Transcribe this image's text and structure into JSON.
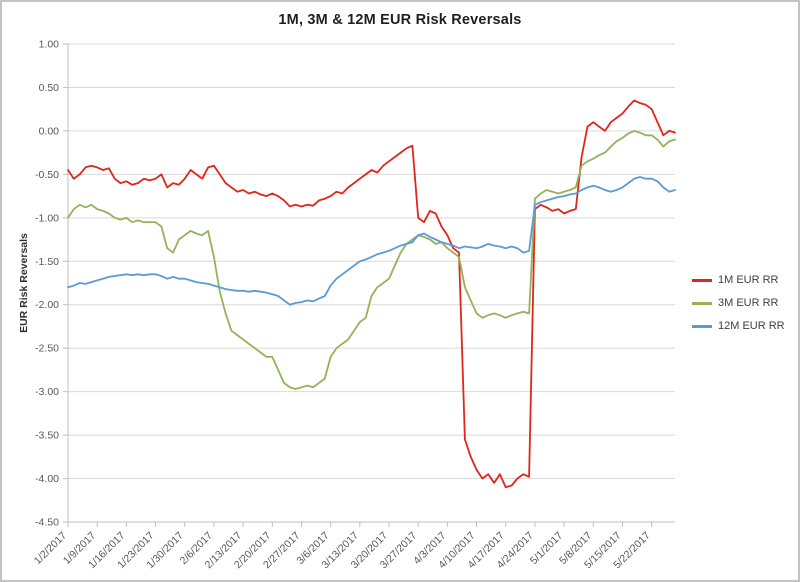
{
  "chart_data": {
    "type": "line",
    "title": "1M, 3M & 12M EUR Risk Reversals",
    "xlabel": "",
    "ylabel": "EUR Risk Reversals",
    "ylim": [
      -4.5,
      1.0
    ],
    "y_step": 0.5,
    "grid": "horizontal",
    "legend_position": "right",
    "x_label_step": 5,
    "x_labels": [
      "1/2/2017",
      "1/9/2017",
      "1/16/2017",
      "1/23/2017",
      "1/30/2017",
      "2/6/2017",
      "2/13/2017",
      "2/20/2017",
      "2/27/2017",
      "3/6/2017",
      "3/13/2017",
      "3/20/2017",
      "3/27/2017",
      "4/3/2017",
      "4/10/2017",
      "4/17/2017",
      "4/24/2017",
      "5/1/2017",
      "5/8/2017",
      "5/15/2017",
      "5/22/2017"
    ],
    "colors": {
      "gridline": "#d9d9d9",
      "axis": "#bfbfbf"
    },
    "series": [
      {
        "name": "1M EUR RR",
        "color": "#e0261b",
        "values": [
          -0.45,
          -0.55,
          -0.5,
          -0.42,
          -0.4,
          -0.42,
          -0.45,
          -0.43,
          -0.55,
          -0.6,
          -0.58,
          -0.62,
          -0.6,
          -0.55,
          -0.57,
          -0.55,
          -0.5,
          -0.65,
          -0.6,
          -0.62,
          -0.55,
          -0.45,
          -0.5,
          -0.55,
          -0.42,
          -0.4,
          -0.5,
          -0.6,
          -0.65,
          -0.7,
          -0.68,
          -0.72,
          -0.7,
          -0.73,
          -0.75,
          -0.72,
          -0.75,
          -0.8,
          -0.87,
          -0.85,
          -0.87,
          -0.85,
          -0.86,
          -0.8,
          -0.78,
          -0.75,
          -0.7,
          -0.72,
          -0.65,
          -0.6,
          -0.55,
          -0.5,
          -0.45,
          -0.48,
          -0.4,
          -0.35,
          -0.3,
          -0.25,
          -0.2,
          -0.17,
          -1.0,
          -1.05,
          -0.92,
          -0.95,
          -1.1,
          -1.2,
          -1.35,
          -1.4,
          -3.55,
          -3.75,
          -3.9,
          -4.0,
          -3.95,
          -4.05,
          -3.95,
          -4.1,
          -4.08,
          -4.0,
          -3.95,
          -3.98,
          -0.9,
          -0.85,
          -0.88,
          -0.92,
          -0.9,
          -0.95,
          -0.92,
          -0.9,
          -0.3,
          0.05,
          0.1,
          0.05,
          0.0,
          0.1,
          0.15,
          0.2,
          0.28,
          0.35,
          0.32,
          0.3,
          0.25,
          0.1,
          -0.05,
          0.0,
          -0.02
        ]
      },
      {
        "name": "3M EUR RR",
        "color": "#94b25a",
        "values": [
          -1.0,
          -0.9,
          -0.85,
          -0.88,
          -0.85,
          -0.9,
          -0.92,
          -0.95,
          -1.0,
          -1.02,
          -1.0,
          -1.05,
          -1.03,
          -1.05,
          -1.05,
          -1.05,
          -1.1,
          -1.35,
          -1.4,
          -1.25,
          -1.2,
          -1.15,
          -1.18,
          -1.2,
          -1.15,
          -1.45,
          -1.85,
          -2.1,
          -2.3,
          -2.35,
          -2.4,
          -2.45,
          -2.5,
          -2.55,
          -2.6,
          -2.6,
          -2.75,
          -2.9,
          -2.95,
          -2.97,
          -2.95,
          -2.93,
          -2.95,
          -2.9,
          -2.85,
          -2.6,
          -2.5,
          -2.45,
          -2.4,
          -2.3,
          -2.2,
          -2.15,
          -1.9,
          -1.8,
          -1.75,
          -1.7,
          -1.55,
          -1.4,
          -1.3,
          -1.25,
          -1.2,
          -1.22,
          -1.25,
          -1.3,
          -1.28,
          -1.35,
          -1.4,
          -1.45,
          -1.8,
          -1.95,
          -2.1,
          -2.15,
          -2.12,
          -2.1,
          -2.12,
          -2.15,
          -2.12,
          -2.1,
          -2.08,
          -2.1,
          -0.78,
          -0.72,
          -0.68,
          -0.7,
          -0.72,
          -0.7,
          -0.68,
          -0.65,
          -0.4,
          -0.35,
          -0.32,
          -0.28,
          -0.25,
          -0.18,
          -0.12,
          -0.08,
          -0.03,
          0.0,
          -0.02,
          -0.05,
          -0.05,
          -0.1,
          -0.18,
          -0.12,
          -0.1
        ]
      },
      {
        "name": "12M EUR RR",
        "color": "#5b9bd5",
        "values": [
          -1.8,
          -1.78,
          -1.75,
          -1.76,
          -1.74,
          -1.72,
          -1.7,
          -1.68,
          -1.67,
          -1.66,
          -1.65,
          -1.66,
          -1.65,
          -1.66,
          -1.65,
          -1.65,
          -1.67,
          -1.7,
          -1.68,
          -1.7,
          -1.7,
          -1.72,
          -1.74,
          -1.75,
          -1.76,
          -1.78,
          -1.8,
          -1.82,
          -1.83,
          -1.84,
          -1.84,
          -1.85,
          -1.84,
          -1.85,
          -1.86,
          -1.88,
          -1.9,
          -1.95,
          -2.0,
          -1.98,
          -1.97,
          -1.95,
          -1.96,
          -1.93,
          -1.9,
          -1.78,
          -1.7,
          -1.65,
          -1.6,
          -1.55,
          -1.5,
          -1.48,
          -1.45,
          -1.42,
          -1.4,
          -1.38,
          -1.35,
          -1.32,
          -1.3,
          -1.28,
          -1.2,
          -1.18,
          -1.22,
          -1.25,
          -1.28,
          -1.3,
          -1.32,
          -1.35,
          -1.33,
          -1.34,
          -1.35,
          -1.33,
          -1.3,
          -1.32,
          -1.33,
          -1.35,
          -1.33,
          -1.35,
          -1.4,
          -1.38,
          -0.85,
          -0.82,
          -0.8,
          -0.78,
          -0.76,
          -0.75,
          -0.73,
          -0.72,
          -0.68,
          -0.65,
          -0.63,
          -0.65,
          -0.68,
          -0.7,
          -0.68,
          -0.65,
          -0.6,
          -0.55,
          -0.53,
          -0.55,
          -0.55,
          -0.58,
          -0.65,
          -0.7,
          -0.68
        ]
      }
    ]
  }
}
